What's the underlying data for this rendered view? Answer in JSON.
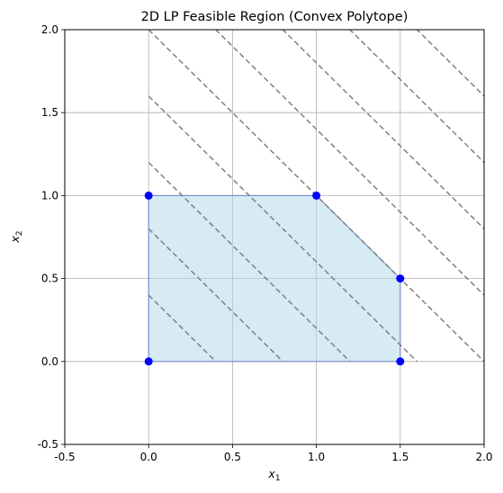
{
  "chart_data": {
    "type": "line",
    "title": "2D LP Feasible Region (Convex Polytope)",
    "xlabel": "x1",
    "ylabel": "x2",
    "xlim": [
      -0.5,
      2.0
    ],
    "ylim": [
      -0.5,
      2.0
    ],
    "xticks": [
      "-0.5",
      "0.0",
      "0.5",
      "1.0",
      "1.5",
      "2.0"
    ],
    "yticks": [
      "-0.5",
      "0.0",
      "0.5",
      "1.0",
      "1.5",
      "2.0"
    ],
    "grid": true,
    "feasible_region": {
      "vertices": [
        [
          0,
          0
        ],
        [
          1.5,
          0
        ],
        [
          1.5,
          0.5
        ],
        [
          1.0,
          1.0
        ],
        [
          0,
          1.0
        ]
      ],
      "fill_color": "#add8e6",
      "edge_color": "#6c7fd0"
    },
    "vertex_points": {
      "x": [
        0.0,
        1.5,
        1.5,
        1.0,
        0.0
      ],
      "y": [
        0.0,
        0.0,
        0.5,
        1.0,
        1.0
      ],
      "color": "#0000ff"
    },
    "objective_contours": {
      "direction": "x1 + x2 = c",
      "levels": [
        0.4,
        0.8,
        1.2,
        1.6,
        2.0,
        2.4,
        2.8,
        3.2,
        3.6
      ],
      "color": "#808080",
      "style": "dashed"
    }
  }
}
